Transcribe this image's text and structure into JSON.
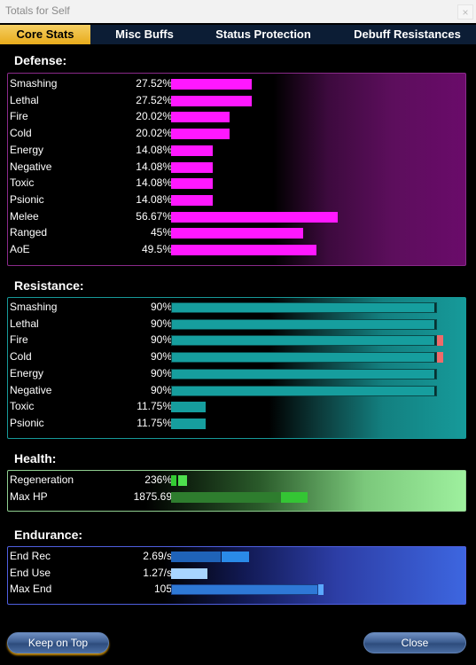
{
  "window": {
    "title": "Totals for Self",
    "close_glyph": "×"
  },
  "tabs": [
    {
      "label": "Core Stats",
      "active": true
    },
    {
      "label": "Misc Buffs",
      "active": false
    },
    {
      "label": "Status Protection",
      "active": false
    },
    {
      "label": "Debuff Resistances",
      "active": false
    }
  ],
  "colors": {
    "defense_bar": "#ff18ff",
    "resistance_bar": "#169e9e",
    "resistance_over": "#f06a6a",
    "health_bar": "#2e8b2e",
    "health_bar_extra": "#33cc33",
    "endurance_bar": "#2e78d6",
    "endurance_light": "#a8d4ff",
    "tab_active": "#f0c040"
  },
  "defense": {
    "title": "Defense:",
    "rows": [
      {
        "label": "Smashing",
        "value": "27.52%",
        "fill": 0.2752
      },
      {
        "label": "Lethal",
        "value": "27.52%",
        "fill": 0.2752
      },
      {
        "label": "Fire",
        "value": "20.02%",
        "fill": 0.2002
      },
      {
        "label": "Cold",
        "value": "20.02%",
        "fill": 0.2002
      },
      {
        "label": "Energy",
        "value": "14.08%",
        "fill": 0.1408
      },
      {
        "label": "Negative",
        "value": "14.08%",
        "fill": 0.1408
      },
      {
        "label": "Toxic",
        "value": "14.08%",
        "fill": 0.1408
      },
      {
        "label": "Psionic",
        "value": "14.08%",
        "fill": 0.1408
      },
      {
        "label": "Melee",
        "value": "56.67%",
        "fill": 0.5667
      },
      {
        "label": "Ranged",
        "value": "45%",
        "fill": 0.45
      },
      {
        "label": "AoE",
        "value": "49.5%",
        "fill": 0.495
      }
    ]
  },
  "resistance": {
    "title": "Resistance:",
    "rows": [
      {
        "label": "Smashing",
        "value": "90%",
        "fill": 0.9,
        "overcap": false
      },
      {
        "label": "Lethal",
        "value": "90%",
        "fill": 0.9,
        "overcap": false
      },
      {
        "label": "Fire",
        "value": "90%",
        "fill": 0.9,
        "overcap": true
      },
      {
        "label": "Cold",
        "value": "90%",
        "fill": 0.9,
        "overcap": true
      },
      {
        "label": "Energy",
        "value": "90%",
        "fill": 0.9,
        "overcap": false
      },
      {
        "label": "Negative",
        "value": "90%",
        "fill": 0.9,
        "overcap": false
      },
      {
        "label": "Toxic",
        "value": "11.75%",
        "fill": 0.1175,
        "overcap": false
      },
      {
        "label": "Psionic",
        "value": "11.75%",
        "fill": 0.1175,
        "overcap": false
      }
    ]
  },
  "health": {
    "title": "Health:",
    "rows": [
      {
        "label": "Regeneration",
        "value": "236%"
      },
      {
        "label": "Max HP",
        "value": "1875.69"
      }
    ]
  },
  "endurance": {
    "title": "Endurance:",
    "rows": [
      {
        "label": "End Rec",
        "value": "2.69/s"
      },
      {
        "label": "End Use",
        "value": "1.27/s"
      },
      {
        "label": "Max End",
        "value": "105"
      }
    ]
  },
  "buttons": {
    "keep_on_top": "Keep on Top",
    "close": "Close"
  }
}
